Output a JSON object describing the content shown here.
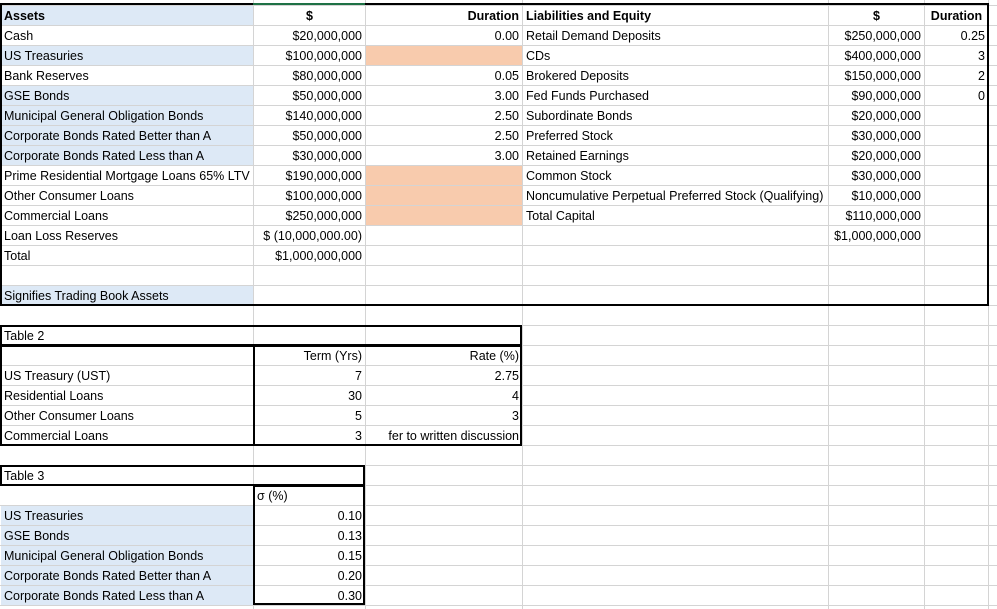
{
  "table1": {
    "headers": {
      "assets": "Assets",
      "dollar": "$",
      "duration": "Duration",
      "liab": "Liabilities and Equity",
      "dollar2": "$",
      "duration2": "Duration"
    },
    "assets": [
      {
        "name": "Cash",
        "amount": "$20,000,000",
        "duration": "0.00",
        "trading": false,
        "peach": false
      },
      {
        "name": "US Treasuries",
        "amount": "$100,000,000",
        "duration": "",
        "trading": true,
        "peach": true
      },
      {
        "name": "Bank Reserves",
        "amount": "$80,000,000",
        "duration": "0.05",
        "trading": false,
        "peach": false
      },
      {
        "name": "GSE Bonds",
        "amount": "$50,000,000",
        "duration": "3.00",
        "trading": true,
        "peach": false
      },
      {
        "name": "Municipal General Obligation Bonds",
        "amount": "$140,000,000",
        "duration": "2.50",
        "trading": true,
        "peach": false
      },
      {
        "name": "Corporate Bonds Rated Better than A",
        "amount": "$50,000,000",
        "duration": "2.50",
        "trading": true,
        "peach": false
      },
      {
        "name": "Corporate Bonds Rated  Less than A",
        "amount": "$30,000,000",
        "duration": "3.00",
        "trading": true,
        "peach": false
      },
      {
        "name": "Prime Residential Mortgage Loans 65% LTV",
        "amount": "$190,000,000",
        "duration": "",
        "trading": false,
        "peach": true
      },
      {
        "name": "Other Consumer Loans",
        "amount": "$100,000,000",
        "duration": "",
        "trading": false,
        "peach": true
      },
      {
        "name": "Commercial Loans",
        "amount": "$250,000,000",
        "duration": "",
        "trading": false,
        "peach": true
      },
      {
        "name": "Loan Loss Reserves",
        "amount": "$ (10,000,000.00)",
        "duration": "",
        "trading": false,
        "peach": false
      },
      {
        "name": "Total",
        "amount": "$1,000,000,000",
        "duration": "",
        "trading": false,
        "peach": false
      }
    ],
    "liabilities": [
      {
        "name": "Retail Demand Deposits",
        "amount": "$250,000,000",
        "duration": "0.25"
      },
      {
        "name": "CDs",
        "amount": "$400,000,000",
        "duration": "3"
      },
      {
        "name": "Brokered Deposits",
        "amount": "$150,000,000",
        "duration": "2"
      },
      {
        "name": "Fed Funds Purchased",
        "amount": "$90,000,000",
        "duration": "0"
      },
      {
        "name": "Subordinate Bonds",
        "amount": "$20,000,000",
        "duration": ""
      },
      {
        "name": "Preferred Stock",
        "amount": "$30,000,000",
        "duration": ""
      },
      {
        "name": "Retained Earnings",
        "amount": "$20,000,000",
        "duration": ""
      },
      {
        "name": "Common Stock",
        "amount": "$30,000,000",
        "duration": ""
      },
      {
        "name": "Noncumulative Perpetual Preferred Stock (Qualifying)",
        "amount": "$10,000,000",
        "duration": ""
      },
      {
        "name": "Total Capital",
        "amount": "$110,000,000",
        "duration": ""
      },
      {
        "name": "",
        "amount": "$1,000,000,000",
        "duration": ""
      }
    ],
    "legend": "Signifies Trading Book Assets"
  },
  "table2": {
    "title": "Table 2",
    "headers": {
      "term": "Term (Yrs)",
      "rate": "Rate (%)"
    },
    "rows": [
      {
        "name": "US Treasury (UST)",
        "term": "7",
        "rate": "2.75"
      },
      {
        "name": "Residential Loans",
        "term": "30",
        "rate": "4"
      },
      {
        "name": "Other Consumer Loans",
        "term": "5",
        "rate": "3"
      },
      {
        "name": "Commercial Loans",
        "term": "3",
        "rate": "fer to written discussion"
      }
    ]
  },
  "table3": {
    "title": "Table 3",
    "header": "σ (%)",
    "rows": [
      {
        "name": "US Treasuries",
        "sigma": "0.10"
      },
      {
        "name": "GSE Bonds",
        "sigma": "0.13"
      },
      {
        "name": "Municipal General Obligation Bonds",
        "sigma": "0.15"
      },
      {
        "name": "Corporate Bonds Rated Better than A",
        "sigma": "0.20"
      },
      {
        "name": "Corporate Bonds Rated  Less than A",
        "sigma": "0.30"
      }
    ]
  },
  "colors": {
    "trading_blue": "#dde9f6",
    "peach": "#f8cbad",
    "grid": "#d4d4d4",
    "selection_green": "#1e7145"
  }
}
